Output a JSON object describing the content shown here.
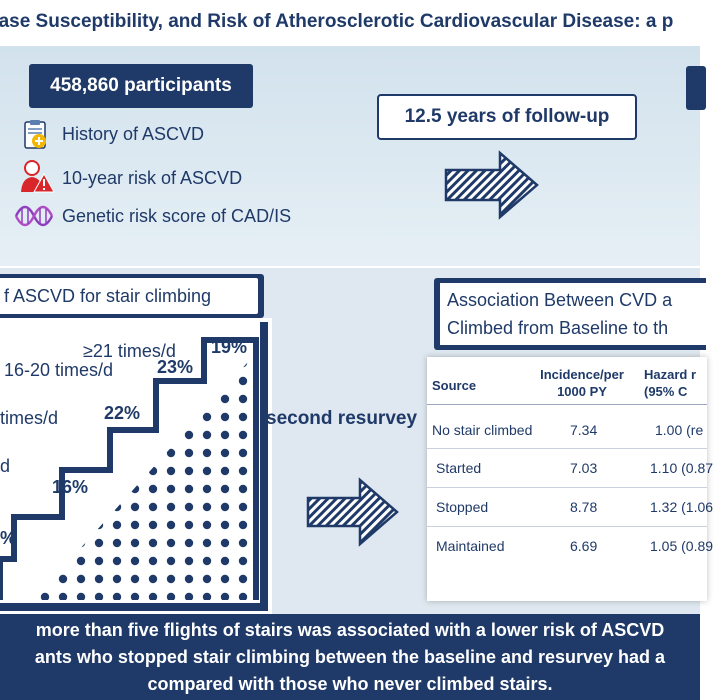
{
  "title": "ease Susceptibility, and Risk of Atherosclerotic Cardiovascular Disease: a p",
  "participants": "458,860 participants",
  "features": [
    {
      "label": "History of ASCVD",
      "icon": "clipboard-plus-icon"
    },
    {
      "label": "10-year risk of ASCVD",
      "icon": "person-warning-icon"
    },
    {
      "label": "Genetic risk score of CAD/IS",
      "icon": "dna-icon"
    }
  ],
  "followup": "12.5 years of follow-up",
  "left_header": "f ASCVD for stair climbing",
  "stairs": [
    {
      "label": "≥21 times/d",
      "pct": "19%"
    },
    {
      "label": "16-20 times/d",
      "pct": "23%"
    },
    {
      "label": "times/d",
      "pct": "22%"
    },
    {
      "label": "d",
      "pct": "16%"
    },
    {
      "label": "",
      "pct": "%"
    }
  ],
  "second_resurvey": "second resurvey",
  "right_header": {
    "line1": "Association Between CVD a",
    "line2": "Climbed from Baseline to th"
  },
  "table": {
    "headers": [
      "Source",
      "Incidence/per 1000 PY",
      "Hazard r (95% C"
    ],
    "rows": [
      [
        "No stair climbed",
        "7.34",
        "1.00 (re"
      ],
      [
        "Started",
        "7.03",
        "1.10 (0.87"
      ],
      [
        "Stopped",
        "8.78",
        "1.32 (1.06"
      ],
      [
        "Maintained",
        "6.69",
        "1.05 (0.89"
      ]
    ]
  },
  "conclusion": [
    "more than five flights of stairs was associated with a lower risk of ASCVD",
    "ants who stopped stair climbing between the baseline and resurvey had a",
    "compared with those who never climbed stairs."
  ],
  "colors": {
    "navy": "#1f3a68",
    "panel": "#d2e2ed",
    "warning": "#d9262a",
    "gold": "#f2b705"
  }
}
